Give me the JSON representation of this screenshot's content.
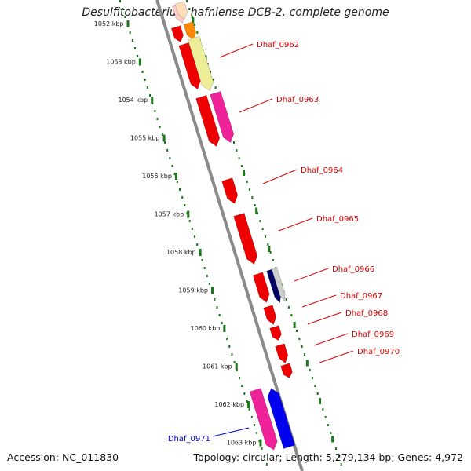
{
  "map": {
    "title": "Desulfitobacterium hafniense DCB-2, complete genome",
    "accession": "Accession: NC_011830",
    "topology": "Topology: circular; Length: 5,279,134 bp; Genes: 4,972"
  },
  "scale": {
    "unit": "kbp",
    "ticks": [
      "1052 kbp",
      "1053 kbp",
      "1054 kbp",
      "1055 kbp",
      "1056 kbp",
      "1057 kbp",
      "1058 kbp",
      "1059 kbp",
      "1060 kbp",
      "1061 kbp",
      "1062 kbp",
      "1063 kbp"
    ]
  },
  "gene_labels": [
    {
      "name": "Dhaf_0962",
      "color": "#dd0000"
    },
    {
      "name": "Dhaf_0963",
      "color": "#dd0000"
    },
    {
      "name": "Dhaf_0964",
      "color": "#dd0000"
    },
    {
      "name": "Dhaf_0965",
      "color": "#dd0000"
    },
    {
      "name": "Dhaf_0966",
      "color": "#dd0000"
    },
    {
      "name": "Dhaf_0967",
      "color": "#dd0000"
    },
    {
      "name": "Dhaf_0968",
      "color": "#dd0000"
    },
    {
      "name": "Dhaf_0969",
      "color": "#dd0000"
    },
    {
      "name": "Dhaf_0970",
      "color": "#dd0000"
    },
    {
      "name": "Dhaf_0971",
      "color": "#0000cc"
    }
  ],
  "colors": {
    "backbone": "#888888",
    "tick_track": "#1a7a1a",
    "cds_red": "#ee0000",
    "cds_magenta": "#ee2299",
    "cds_yellow": "#eeee99",
    "cds_orange": "#ff8800",
    "cds_peach": "#ffddbb",
    "cds_pink": "#ffcccc",
    "cds_navy": "#000066",
    "cds_grey": "#cccccc",
    "cds_blue": "#0000ee"
  }
}
